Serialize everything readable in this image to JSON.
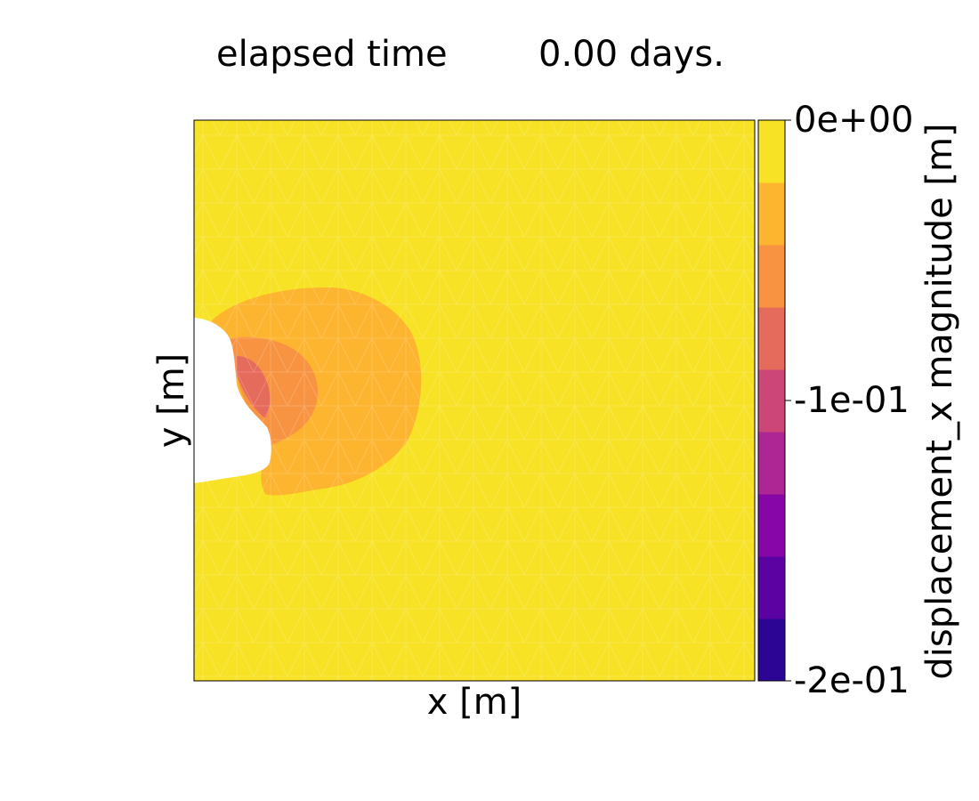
{
  "chart_data": {
    "type": "heatmap",
    "title": {
      "left": "elapsed time",
      "right": "0.00 days."
    },
    "xlabel": "x [m]",
    "ylabel": "y [m]",
    "colorbar": {
      "label": "displacement_x magnitude [m]",
      "range": [
        -0.2,
        0.0
      ],
      "levels": 9,
      "colors": [
        "#2c0594",
        "#5b02a3",
        "#8606a6",
        "#ac2694",
        "#cc4778",
        "#e56b5d",
        "#f89441",
        "#fdb42f",
        "#f7e225"
      ],
      "ticks": [
        {
          "value": 0.0,
          "label": "0e+00"
        },
        {
          "value": -0.1,
          "label": "-1e-01"
        },
        {
          "value": -0.2,
          "label": "-2e-01"
        }
      ]
    },
    "field": {
      "background_level_color": "#f7e225",
      "regions": [
        {
          "level_color": "#fdb42f",
          "description_value": -0.022
        },
        {
          "level_color": "#f89441",
          "description_value": -0.044
        },
        {
          "level_color": "#e56b5d",
          "description_value": -0.067
        }
      ],
      "cavity_color": "#ffffff"
    },
    "axis_ticks_visible": false,
    "grid": false
  }
}
